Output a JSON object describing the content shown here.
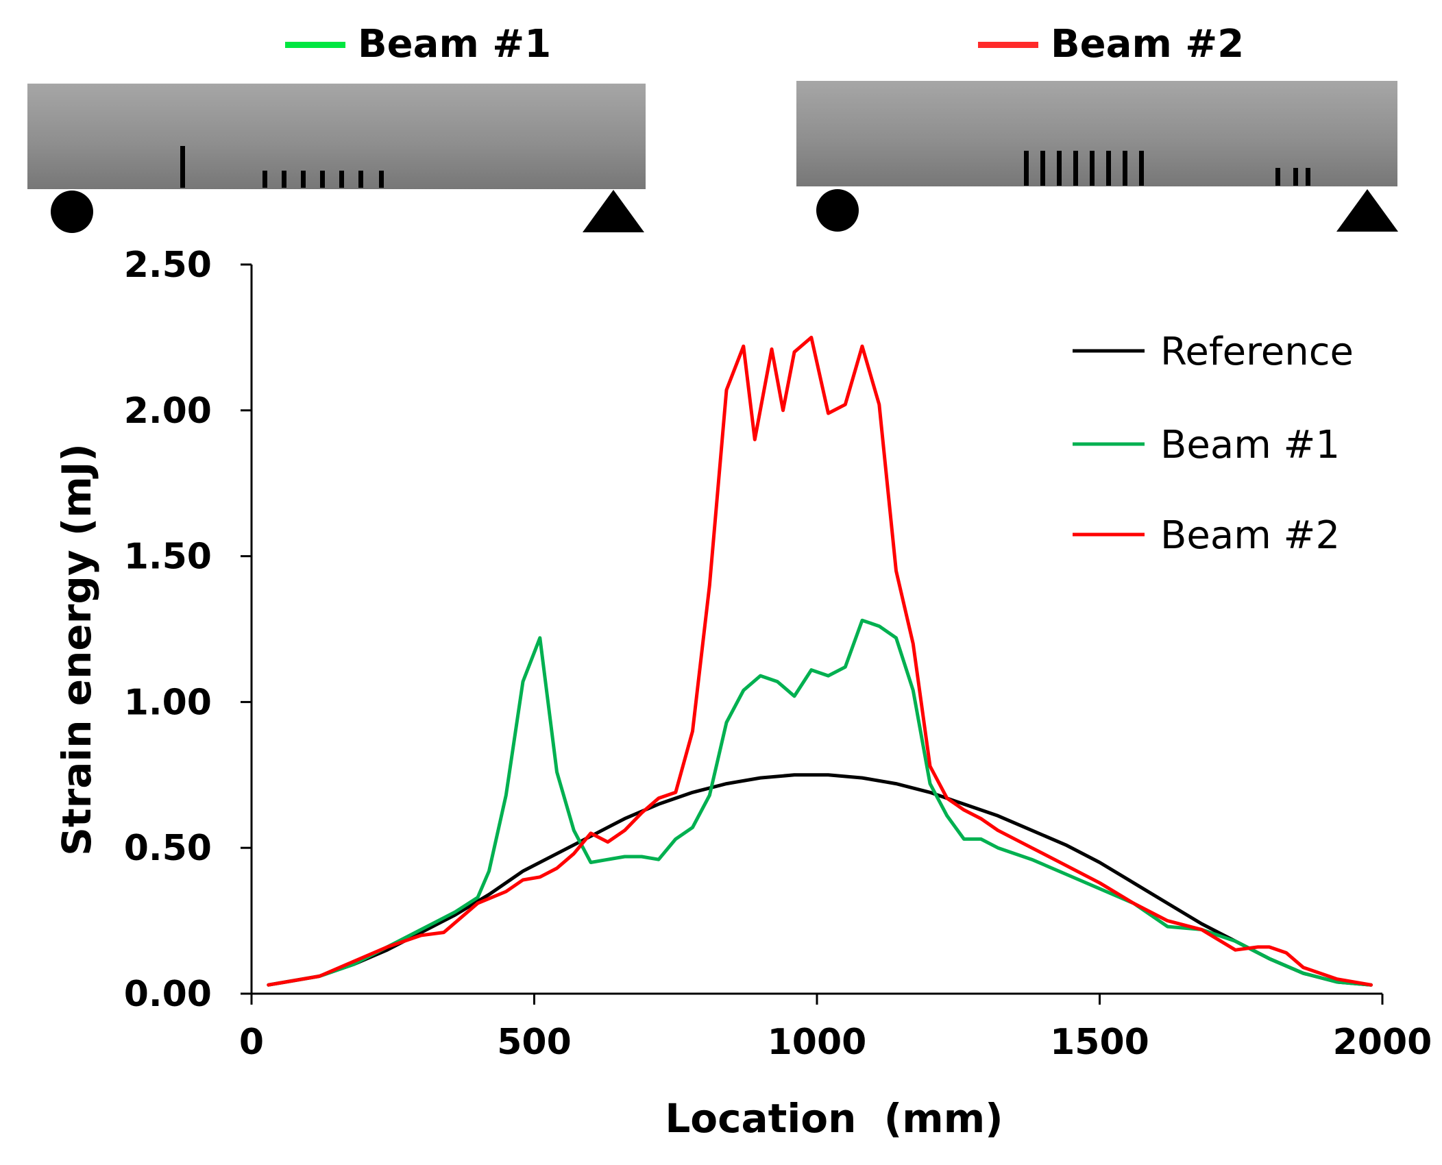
{
  "beam_diagrams": [
    {
      "label": "Beam #1",
      "color": "#00e640",
      "crack_groups": [
        "single crack",
        "seven cracks"
      ]
    },
    {
      "label": "Beam #2",
      "color": "#ff2a2a",
      "crack_groups": [
        "eight cracks",
        "three cracks"
      ]
    }
  ],
  "chart_data": {
    "type": "line",
    "title": "",
    "xlabel": "Location  (mm)",
    "ylabel": "Strain energy (mJ)",
    "xlim": [
      0,
      2000
    ],
    "ylim": [
      0,
      2.5
    ],
    "xticks": [
      "0",
      "500",
      "1000",
      "1500",
      "2000"
    ],
    "yticks": [
      "0.00",
      "0.50",
      "1.00",
      "1.50",
      "2.00",
      "2.50"
    ],
    "grid": false,
    "legend_position": "top-right",
    "series": [
      {
        "name": "Reference",
        "color": "#000000",
        "x": [
          30,
          60,
          120,
          180,
          240,
          300,
          360,
          420,
          480,
          540,
          600,
          660,
          720,
          780,
          840,
          900,
          960,
          1020,
          1080,
          1140,
          1200,
          1260,
          1320,
          1380,
          1440,
          1500,
          1560,
          1620,
          1680,
          1740,
          1800,
          1860,
          1920,
          1980
        ],
        "y": [
          0.03,
          0.04,
          0.06,
          0.1,
          0.15,
          0.21,
          0.27,
          0.34,
          0.42,
          0.48,
          0.54,
          0.6,
          0.65,
          0.69,
          0.72,
          0.74,
          0.75,
          0.75,
          0.74,
          0.72,
          0.69,
          0.65,
          0.61,
          0.56,
          0.51,
          0.45,
          0.38,
          0.31,
          0.24,
          0.18,
          0.12,
          0.07,
          0.04,
          0.03
        ]
      },
      {
        "name": "Beam #1",
        "color": "#00b050",
        "x": [
          30,
          60,
          120,
          180,
          240,
          300,
          360,
          400,
          420,
          450,
          480,
          510,
          540,
          570,
          600,
          630,
          660,
          690,
          720,
          750,
          780,
          810,
          840,
          870,
          900,
          930,
          960,
          990,
          1020,
          1050,
          1080,
          1110,
          1140,
          1170,
          1200,
          1230,
          1260,
          1290,
          1320,
          1380,
          1440,
          1500,
          1560,
          1620,
          1680,
          1740,
          1800,
          1860,
          1920,
          1980
        ],
        "y": [
          0.03,
          0.04,
          0.06,
          0.1,
          0.16,
          0.22,
          0.28,
          0.33,
          0.42,
          0.68,
          1.07,
          1.22,
          0.76,
          0.56,
          0.45,
          0.46,
          0.47,
          0.47,
          0.46,
          0.53,
          0.57,
          0.68,
          0.93,
          1.04,
          1.09,
          1.07,
          1.02,
          1.11,
          1.09,
          1.12,
          1.28,
          1.26,
          1.22,
          1.04,
          0.72,
          0.61,
          0.53,
          0.53,
          0.5,
          0.46,
          0.41,
          0.36,
          0.31,
          0.23,
          0.22,
          0.18,
          0.12,
          0.07,
          0.04,
          0.03
        ]
      },
      {
        "name": "Beam #2",
        "color": "#ff0000",
        "x": [
          30,
          60,
          120,
          180,
          240,
          300,
          340,
          400,
          450,
          480,
          510,
          540,
          570,
          600,
          630,
          660,
          690,
          720,
          750,
          780,
          810,
          840,
          870,
          890,
          920,
          940,
          960,
          990,
          1020,
          1050,
          1080,
          1110,
          1140,
          1170,
          1200,
          1230,
          1260,
          1290,
          1320,
          1380,
          1440,
          1500,
          1560,
          1620,
          1680,
          1740,
          1780,
          1800,
          1830,
          1860,
          1920,
          1980
        ],
        "y": [
          0.03,
          0.04,
          0.06,
          0.11,
          0.16,
          0.2,
          0.21,
          0.31,
          0.35,
          0.39,
          0.4,
          0.43,
          0.48,
          0.55,
          0.52,
          0.56,
          0.62,
          0.67,
          0.69,
          0.9,
          1.4,
          2.07,
          2.22,
          1.9,
          2.21,
          2.0,
          2.2,
          2.25,
          1.99,
          2.02,
          2.22,
          2.02,
          1.45,
          1.2,
          0.78,
          0.67,
          0.63,
          0.6,
          0.56,
          0.5,
          0.44,
          0.38,
          0.31,
          0.25,
          0.22,
          0.15,
          0.16,
          0.16,
          0.14,
          0.09,
          0.05,
          0.03
        ]
      }
    ]
  }
}
